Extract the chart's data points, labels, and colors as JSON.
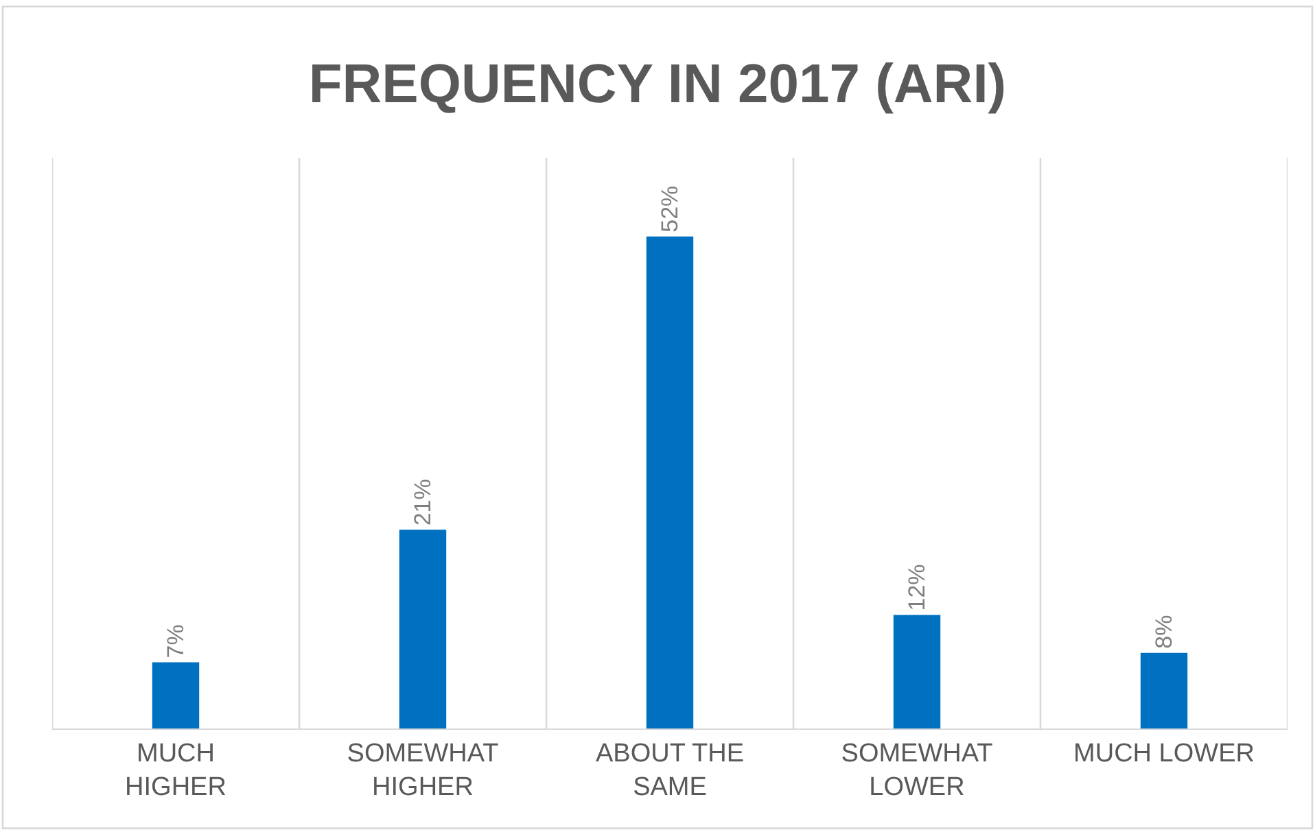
{
  "chart_data": {
    "type": "bar",
    "title": "FREQUENCY IN 2017 (ARI)",
    "categories": [
      "MUCH HIGHER",
      "SOMEWHAT HIGHER",
      "ABOUT THE SAME",
      "SOMEWHAT LOWER",
      "MUCH LOWER"
    ],
    "values": [
      7,
      21,
      52,
      12,
      8
    ],
    "value_labels": [
      "7%",
      "21%",
      "52%",
      "12%",
      "8%"
    ],
    "color": "#0070c0",
    "grid": "x",
    "legend": false
  }
}
